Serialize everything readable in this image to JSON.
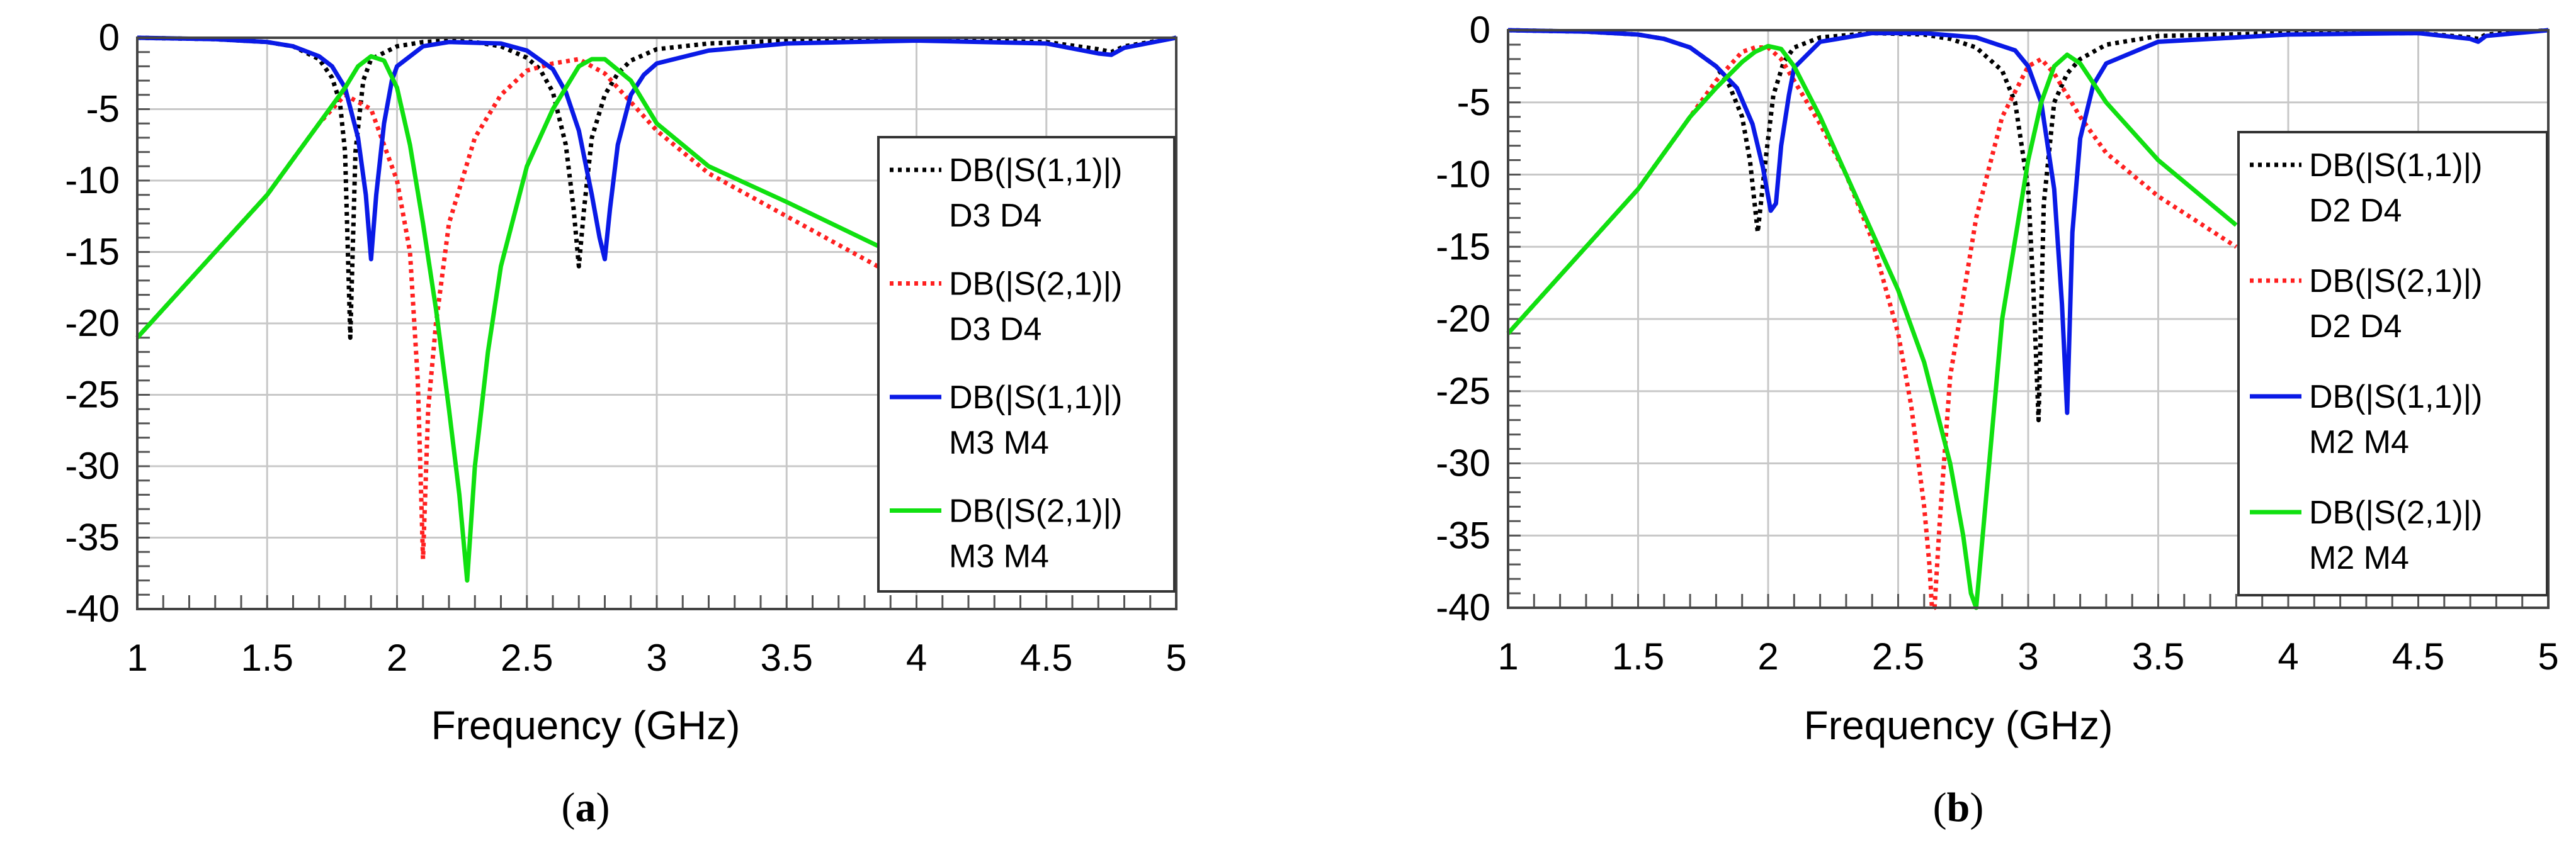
{
  "chart_data": [
    {
      "type": "line",
      "panel_label": "(a)",
      "xlabel": "Frequency (GHz)",
      "ylabel": "",
      "xlim": [
        1,
        5
      ],
      "ylim": [
        -40,
        0
      ],
      "xticks": [
        "1",
        "1.5",
        "2",
        "2.5",
        "3",
        "3.5",
        "4",
        "4.5",
        "5"
      ],
      "yticks": [
        "0",
        "-5",
        "-10",
        "-15",
        "-20",
        "-25",
        "-30",
        "-35",
        "-40"
      ],
      "grid": true,
      "legend_position": "right",
      "series": [
        {
          "name": "DB(|S(1,1)|) D3 D4",
          "legend_lines": [
            "DB(|S(1,1)|)",
            "D3 D4"
          ],
          "color": "#000000",
          "style": "dotted",
          "x": [
            1.0,
            1.3,
            1.5,
            1.6,
            1.7,
            1.75,
            1.78,
            1.8,
            1.82,
            1.84,
            1.87,
            1.9,
            2.0,
            2.1,
            2.2,
            2.3,
            2.4,
            2.5,
            2.55,
            2.6,
            2.65,
            2.68,
            2.7,
            2.72,
            2.75,
            2.8,
            2.85,
            2.9,
            3.0,
            3.2,
            3.5,
            4.0,
            4.5,
            4.7,
            4.75,
            4.8,
            5.0
          ],
          "y": [
            0,
            -0.1,
            -0.3,
            -0.6,
            -1.5,
            -2.8,
            -4.5,
            -8,
            -21,
            -8,
            -3,
            -1.5,
            -0.6,
            -0.3,
            -0.2,
            -0.3,
            -0.6,
            -1.4,
            -2.2,
            -3.8,
            -7.5,
            -12,
            -16,
            -12,
            -7,
            -4,
            -2.5,
            -1.6,
            -0.8,
            -0.4,
            -0.2,
            -0.1,
            -0.3,
            -0.8,
            -1.0,
            -0.6,
            0
          ]
        },
        {
          "name": "DB(|S(2,1)|) D3 D4",
          "legend_lines": [
            "DB(|S(2,1)|)",
            "D3 D4"
          ],
          "color": "#ff2020",
          "style": "dotted",
          "x": [
            1.0,
            1.2,
            1.4,
            1.5,
            1.6,
            1.7,
            1.8,
            1.9,
            2.0,
            2.05,
            2.08,
            2.1,
            2.12,
            2.15,
            2.2,
            2.3,
            2.4,
            2.5,
            2.6,
            2.7,
            2.8,
            2.9,
            3.0,
            3.2,
            3.5,
            3.9
          ],
          "y": [
            -21,
            -17,
            -13,
            -11,
            -8.5,
            -6,
            -4,
            -5,
            -10,
            -15,
            -24,
            -36.5,
            -26,
            -20,
            -13,
            -7,
            -4,
            -2.3,
            -1.8,
            -1.5,
            -2.5,
            -4.5,
            -6.5,
            -9.5,
            -12.5,
            -16.5
          ]
        },
        {
          "name": "DB(|S(1,1)|) M3 M4",
          "legend_lines": [
            "DB(|S(1,1)|)",
            "M3 M4"
          ],
          "color": "#0a1ae6",
          "style": "solid",
          "x": [
            1.0,
            1.3,
            1.5,
            1.6,
            1.7,
            1.75,
            1.8,
            1.85,
            1.88,
            1.9,
            1.92,
            1.95,
            1.98,
            2.0,
            2.1,
            2.2,
            2.4,
            2.5,
            2.6,
            2.65,
            2.7,
            2.75,
            2.78,
            2.8,
            2.82,
            2.85,
            2.9,
            2.95,
            3.0,
            3.2,
            3.5,
            4.0,
            4.5,
            4.7,
            4.75,
            4.8,
            5.0
          ],
          "y": [
            0,
            -0.1,
            -0.3,
            -0.6,
            -1.3,
            -2,
            -3.5,
            -7,
            -11,
            -15.5,
            -11,
            -6,
            -3,
            -2,
            -0.6,
            -0.3,
            -0.4,
            -0.9,
            -2.2,
            -3.8,
            -6.5,
            -11,
            -14,
            -15.5,
            -12,
            -7.5,
            -4,
            -2.6,
            -1.8,
            -0.9,
            -0.4,
            -0.2,
            -0.4,
            -1.1,
            -1.2,
            -0.7,
            0
          ]
        },
        {
          "name": "DB(|S(2,1)|) M3 M4",
          "legend_lines": [
            "DB(|S(2,1)|)",
            "M3 M4"
          ],
          "color": "#10e010",
          "style": "solid",
          "x": [
            1.0,
            1.2,
            1.4,
            1.5,
            1.6,
            1.7,
            1.8,
            1.85,
            1.9,
            1.95,
            2.0,
            2.05,
            2.1,
            2.15,
            2.2,
            2.24,
            2.27,
            2.3,
            2.35,
            2.4,
            2.5,
            2.6,
            2.7,
            2.75,
            2.8,
            2.9,
            3.0,
            3.2,
            3.5,
            3.9
          ],
          "y": [
            -21,
            -17,
            -13,
            -11,
            -8.5,
            -6,
            -3.5,
            -2,
            -1.3,
            -1.6,
            -3.5,
            -7.5,
            -13,
            -19,
            -26,
            -32,
            -38,
            -30,
            -22,
            -16,
            -9,
            -5,
            -2,
            -1.5,
            -1.5,
            -3,
            -6,
            -9,
            -11.5,
            -15
          ]
        }
      ]
    },
    {
      "type": "line",
      "panel_label": "(b)",
      "xlabel": "Frequency (GHz)",
      "ylabel": "",
      "xlim": [
        1,
        5
      ],
      "ylim": [
        -40,
        0
      ],
      "xticks": [
        "1",
        "1.5",
        "2",
        "2.5",
        "3",
        "3.5",
        "4",
        "4.5",
        "5"
      ],
      "yticks": [
        "0",
        "-5",
        "-10",
        "-15",
        "-20",
        "-25",
        "-30",
        "-35",
        "-40"
      ],
      "grid": true,
      "legend_position": "right",
      "series": [
        {
          "name": "DB(|S(1,1)|) D2 D4",
          "legend_lines": [
            "DB(|S(1,1)|)",
            "D2 D4"
          ],
          "color": "#000000",
          "style": "dotted",
          "x": [
            1.0,
            1.3,
            1.5,
            1.6,
            1.7,
            1.8,
            1.85,
            1.9,
            1.93,
            1.96,
            1.99,
            2.02,
            2.06,
            2.1,
            2.2,
            2.4,
            2.6,
            2.7,
            2.8,
            2.9,
            2.95,
            3.0,
            3.02,
            3.04,
            3.06,
            3.1,
            3.15,
            3.2,
            3.3,
            3.5,
            4.0,
            4.5,
            4.7,
            4.73,
            4.76,
            5.0
          ],
          "y": [
            0,
            -0.1,
            -0.3,
            -0.6,
            -1.2,
            -2.5,
            -3.8,
            -6,
            -9,
            -14,
            -9,
            -4.5,
            -2.2,
            -1.2,
            -0.5,
            -0.2,
            -0.3,
            -0.6,
            -1.2,
            -2.8,
            -5,
            -11,
            -18,
            -27,
            -12,
            -5,
            -3,
            -2,
            -1,
            -0.4,
            -0.2,
            -0.2,
            -0.5,
            -0.6,
            -0.3,
            0
          ]
        },
        {
          "name": "DB(|S(2,1)|) D2 D4",
          "legend_lines": [
            "DB(|S(2,1)|)",
            "D2 D4"
          ],
          "color": "#ff2020",
          "style": "dotted",
          "x": [
            1.0,
            1.2,
            1.4,
            1.5,
            1.6,
            1.7,
            1.8,
            1.9,
            1.95,
            2.0,
            2.05,
            2.1,
            2.2,
            2.3,
            2.4,
            2.5,
            2.55,
            2.6,
            2.62,
            2.63,
            2.64,
            2.66,
            2.7,
            2.8,
            2.9,
            3.0,
            3.05,
            3.1,
            3.2,
            3.3,
            3.5,
            3.8
          ],
          "y": [
            -21,
            -17,
            -13,
            -11,
            -8.5,
            -6,
            -3.5,
            -1.5,
            -1.2,
            -1.2,
            -2,
            -3.5,
            -6.5,
            -10,
            -14.5,
            -21,
            -26,
            -33,
            -37,
            -40,
            -40,
            -34,
            -24,
            -13,
            -6,
            -2.5,
            -2,
            -3,
            -6,
            -8.5,
            -11.5,
            -15
          ]
        },
        {
          "name": "DB(|S(1,1)|) M2 M4",
          "legend_lines": [
            "DB(|S(1,1)|)",
            "M2 M4"
          ],
          "color": "#0a1ae6",
          "style": "solid",
          "x": [
            1.0,
            1.3,
            1.5,
            1.6,
            1.7,
            1.8,
            1.88,
            1.94,
            1.98,
            2.01,
            2.03,
            2.05,
            2.08,
            2.1,
            2.2,
            2.4,
            2.6,
            2.8,
            2.95,
            3.0,
            3.05,
            3.1,
            3.13,
            3.15,
            3.17,
            3.2,
            3.25,
            3.3,
            3.5,
            4.0,
            4.5,
            4.7,
            4.73,
            4.76,
            5.0
          ],
          "y": [
            0,
            -0.1,
            -0.3,
            -0.6,
            -1.2,
            -2.5,
            -4,
            -6.5,
            -9.5,
            -12.5,
            -12,
            -8,
            -4.5,
            -2.6,
            -0.8,
            -0.2,
            -0.2,
            -0.5,
            -1.4,
            -2.5,
            -5,
            -11,
            -19,
            -26.5,
            -14,
            -7.5,
            -3.8,
            -2.3,
            -0.8,
            -0.3,
            -0.2,
            -0.6,
            -0.8,
            -0.4,
            0
          ]
        },
        {
          "name": "DB(|S(2,1)|) M2 M4",
          "legend_lines": [
            "DB(|S(2,1)|)",
            "M2 M4"
          ],
          "color": "#10e010",
          "style": "solid",
          "x": [
            1.0,
            1.2,
            1.4,
            1.5,
            1.6,
            1.7,
            1.8,
            1.9,
            1.95,
            2.0,
            2.05,
            2.1,
            2.2,
            2.3,
            2.4,
            2.5,
            2.6,
            2.7,
            2.75,
            2.78,
            2.8,
            2.82,
            2.85,
            2.9,
            3.0,
            3.05,
            3.1,
            3.15,
            3.2,
            3.3,
            3.5,
            3.8
          ],
          "y": [
            -21,
            -17,
            -13,
            -11,
            -8.5,
            -6,
            -4,
            -2.2,
            -1.5,
            -1.1,
            -1.3,
            -2.5,
            -6,
            -10,
            -14,
            -18,
            -23,
            -30,
            -35,
            -39,
            -40,
            -36,
            -30,
            -20,
            -9,
            -5,
            -2.5,
            -1.7,
            -2.3,
            -5,
            -9,
            -13.5
          ]
        }
      ]
    }
  ]
}
